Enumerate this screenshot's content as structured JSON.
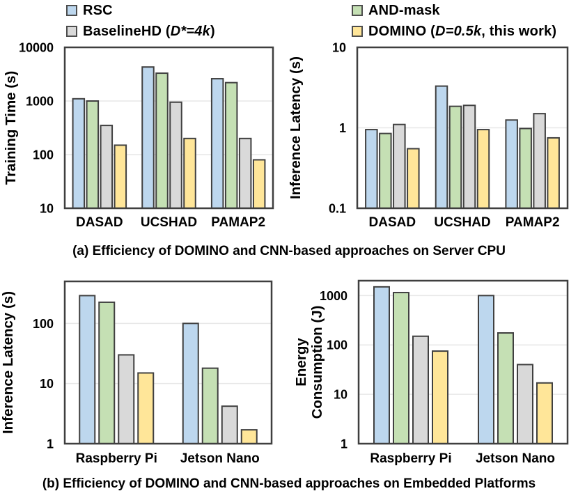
{
  "captions": {
    "a": "(a) Efficiency of DOMINO and CNN-based approaches on Server CPU",
    "b": "(b) Efficiency of DOMINO and CNN-based approaches on Embedded Platforms"
  },
  "colors": {
    "rsc": "#BDD7EE",
    "and_mask": "#C5E0B4",
    "baseline_hd": "#D9D9D9",
    "domino": "#FFE699",
    "bar_border": "#404040",
    "plot_border": "#3F3F3F",
    "gridline": "#E7E7E7",
    "text": "#000000"
  },
  "legend": {
    "columns": [
      {
        "items": [
          {
            "key": "rsc",
            "color": "#BDD7EE",
            "segments": [
              {
                "t": "RSC",
                "i": false
              }
            ]
          },
          {
            "key": "baseline-hd",
            "color": "#D9D9D9",
            "segments": [
              {
                "t": "BaselineHD (",
                "i": false
              },
              {
                "t": "D*=4k",
                "i": true
              },
              {
                "t": ")",
                "i": false
              }
            ]
          }
        ]
      },
      {
        "items": [
          {
            "key": "and-mask",
            "color": "#C5E0B4",
            "segments": [
              {
                "t": "AND-mask",
                "i": false
              }
            ]
          },
          {
            "key": "domino",
            "color": "#FFE699",
            "segments": [
              {
                "t": "DOMINO (",
                "i": false
              },
              {
                "t": "D=0.5k",
                "i": true
              },
              {
                "t": ", this work)",
                "i": false
              }
            ]
          }
        ]
      }
    ]
  },
  "chart_data": [
    {
      "id": "training-time-server",
      "type": "bar",
      "yscale": "log",
      "ylabel": "Training Time (s)",
      "ylabel_lines": [
        "Training Time (s)"
      ],
      "ylim": [
        10,
        10000
      ],
      "yticks": [
        10,
        100,
        1000,
        10000
      ],
      "ytick_labels": [
        "10",
        "100",
        "1000",
        "10000"
      ],
      "categories": [
        "DASAD",
        "UCSHAD",
        "PAMAP2"
      ],
      "grid": true,
      "legend_position": "top",
      "series": [
        {
          "name": "RSC",
          "color": "#BDD7EE",
          "values": [
            1100,
            4300,
            2600
          ]
        },
        {
          "name": "AND-mask",
          "color": "#C5E0B4",
          "values": [
            1000,
            3300,
            2200
          ]
        },
        {
          "name": "BaselineHD",
          "color": "#D9D9D9",
          "values": [
            350,
            950,
            200
          ]
        },
        {
          "name": "DOMINO",
          "color": "#FFE699",
          "values": [
            150,
            200,
            80
          ]
        }
      ]
    },
    {
      "id": "inference-latency-server",
      "type": "bar",
      "yscale": "log",
      "ylabel": "Inference Latency (s)",
      "ylabel_lines": [
        "Inference Latency (s)"
      ],
      "ylim": [
        0.1,
        10
      ],
      "yticks": [
        0.1,
        1,
        10
      ],
      "ytick_labels": [
        "0.1",
        "1",
        "10"
      ],
      "categories": [
        "DASAD",
        "UCSHAD",
        "PAMAP2"
      ],
      "grid": true,
      "legend_position": "top",
      "series": [
        {
          "name": "RSC",
          "color": "#BDD7EE",
          "values": [
            0.95,
            3.3,
            1.25
          ]
        },
        {
          "name": "AND-mask",
          "color": "#C5E0B4",
          "values": [
            0.85,
            1.85,
            0.98
          ]
        },
        {
          "name": "BaselineHD",
          "color": "#D9D9D9",
          "values": [
            1.1,
            1.9,
            1.5
          ]
        },
        {
          "name": "DOMINO",
          "color": "#FFE699",
          "values": [
            0.55,
            0.95,
            0.75
          ]
        }
      ]
    },
    {
      "id": "inference-latency-embedded",
      "type": "bar",
      "yscale": "log",
      "ylabel": "Inference Latency (s)",
      "ylabel_lines": [
        "Inference Latency (s)"
      ],
      "ylim": [
        1,
        500
      ],
      "yticks": [
        1,
        10,
        100
      ],
      "ytick_labels": [
        "1",
        "10",
        "100"
      ],
      "categories": [
        "Raspberry Pi",
        "Jetson Nano"
      ],
      "grid": true,
      "legend_position": "top",
      "series": [
        {
          "name": "RSC",
          "color": "#BDD7EE",
          "values": [
            290,
            100
          ]
        },
        {
          "name": "AND-mask",
          "color": "#C5E0B4",
          "values": [
            225,
            18
          ]
        },
        {
          "name": "BaselineHD",
          "color": "#D9D9D9",
          "values": [
            30,
            4.2
          ]
        },
        {
          "name": "DOMINO",
          "color": "#FFE699",
          "values": [
            15,
            1.7
          ]
        }
      ]
    },
    {
      "id": "energy-consumption-embedded",
      "type": "bar",
      "yscale": "log",
      "ylabel": "Energy Consumption (J)",
      "ylabel_lines": [
        "Energy",
        "Consumption (J)"
      ],
      "ylim": [
        1,
        2000
      ],
      "yticks": [
        1,
        10,
        100,
        1000
      ],
      "ytick_labels": [
        "1",
        "10",
        "100",
        "1000"
      ],
      "categories": [
        "Raspberry Pi",
        "Jetson Nano"
      ],
      "grid": true,
      "legend_position": "top",
      "series": [
        {
          "name": "RSC",
          "color": "#BDD7EE",
          "values": [
            1500,
            1000
          ]
        },
        {
          "name": "AND-mask",
          "color": "#C5E0B4",
          "values": [
            1150,
            175
          ]
        },
        {
          "name": "BaselineHD",
          "color": "#D9D9D9",
          "values": [
            150,
            40
          ]
        },
        {
          "name": "DOMINO",
          "color": "#FFE699",
          "values": [
            75,
            17
          ]
        }
      ]
    }
  ]
}
